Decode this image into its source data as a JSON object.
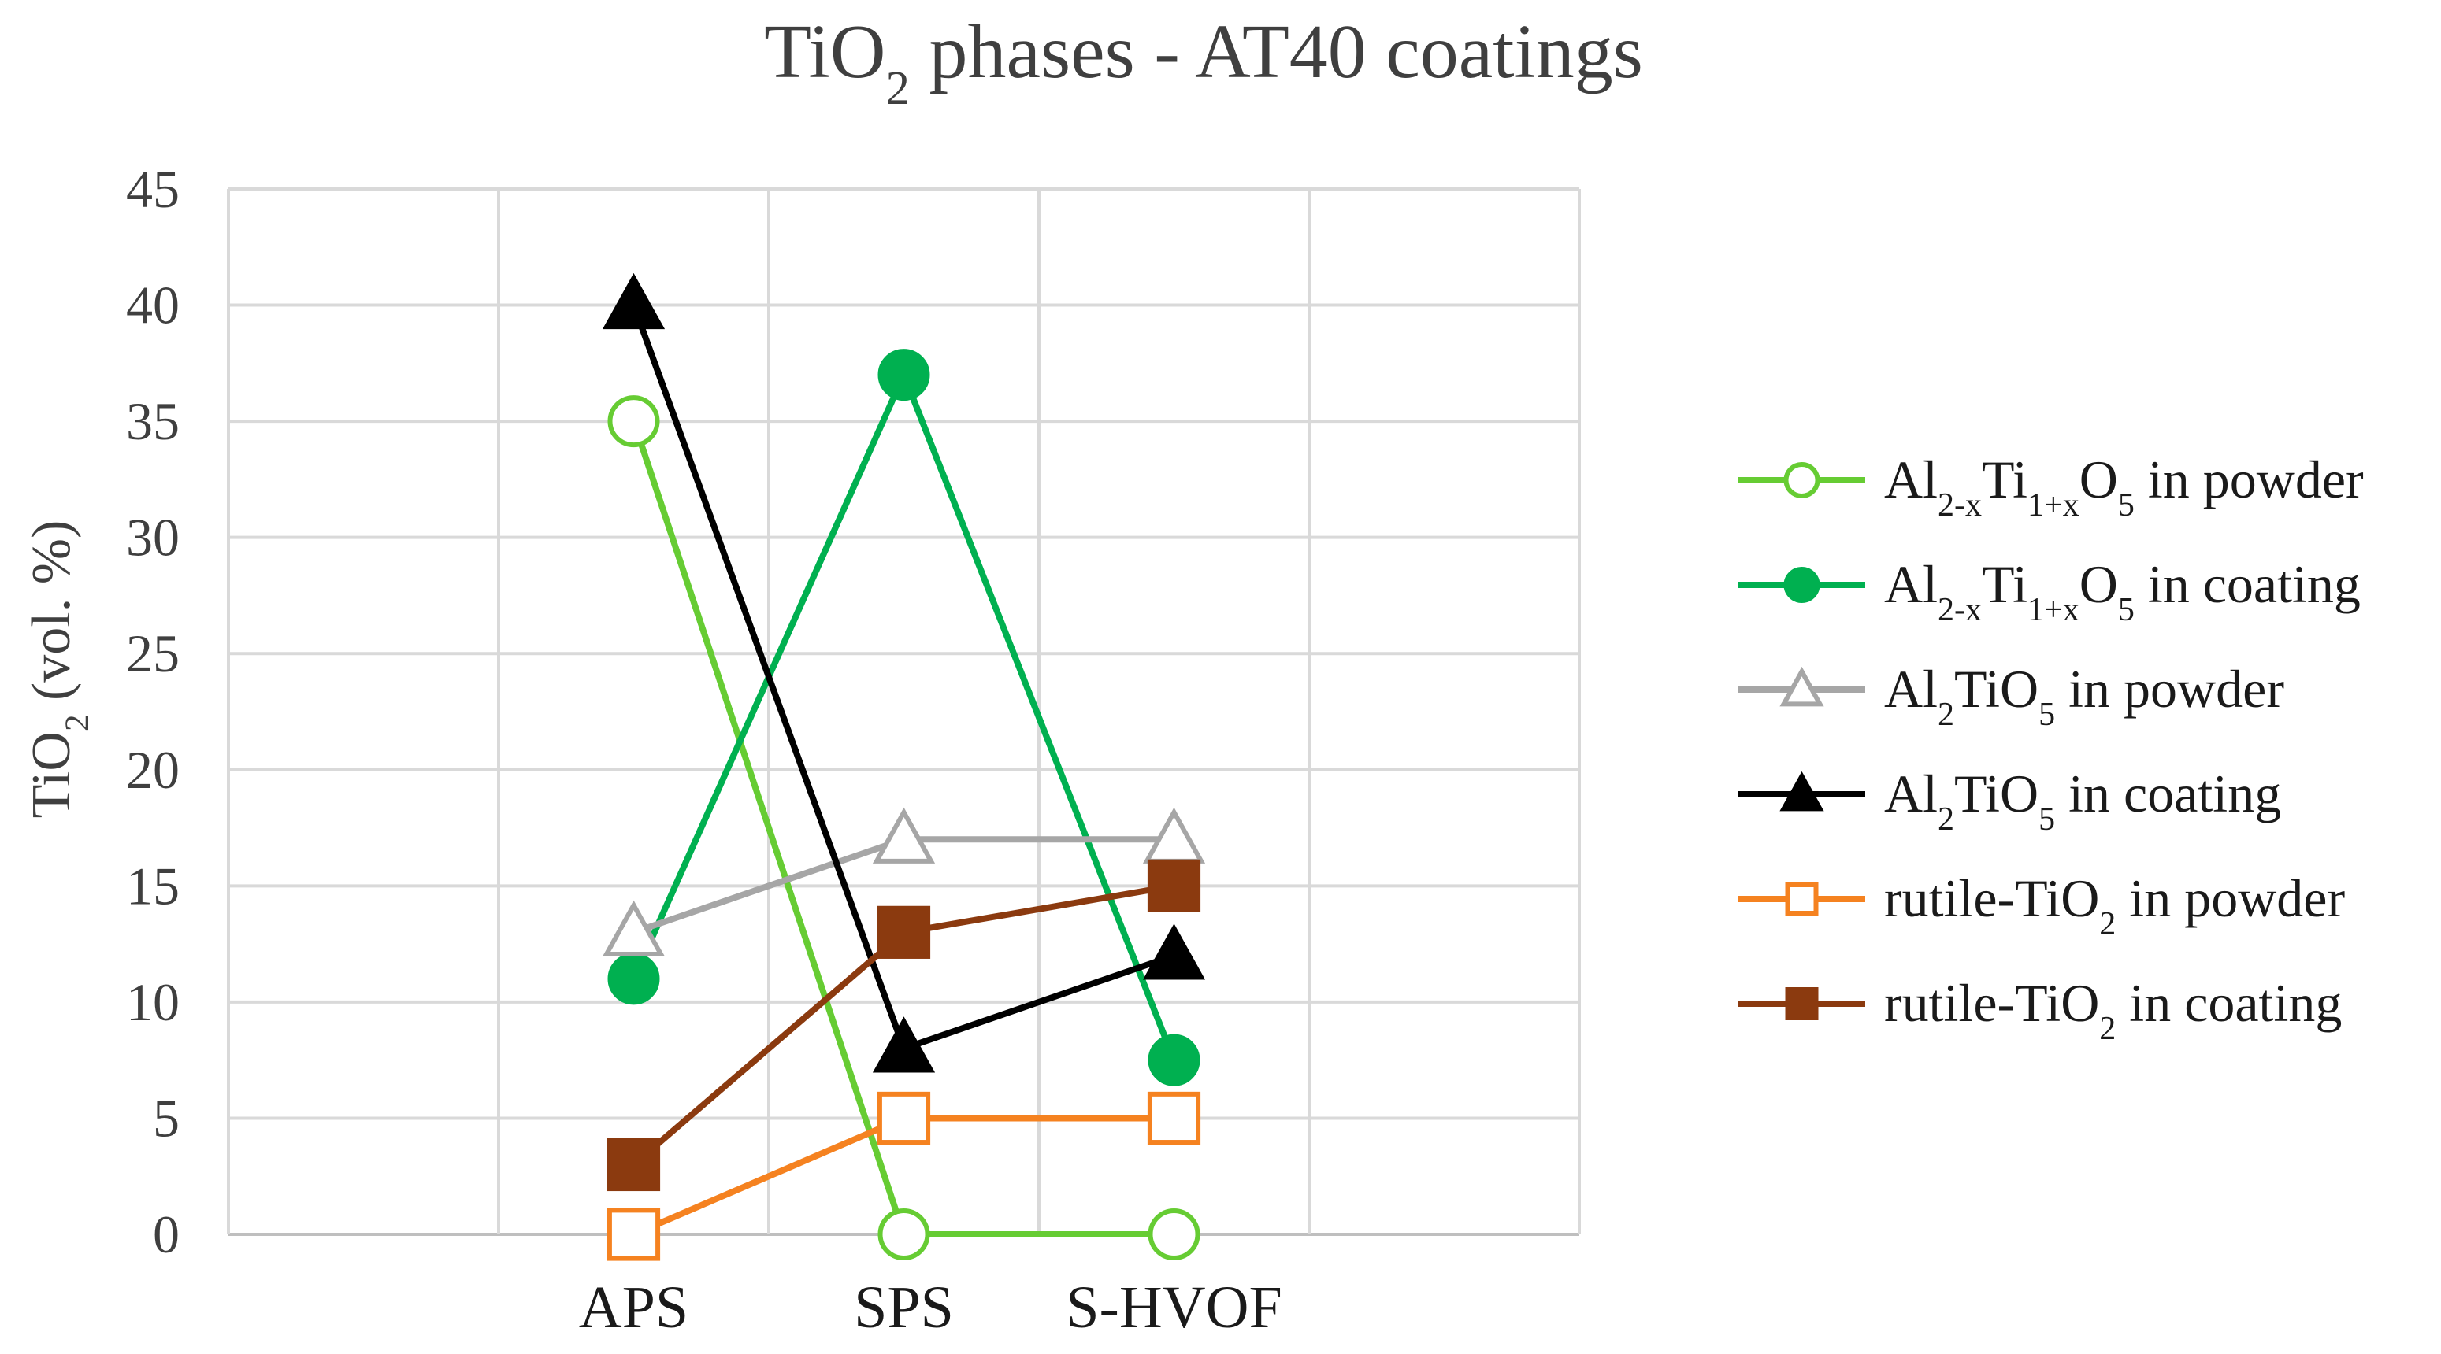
{
  "chart_data": {
    "type": "line",
    "title": {
      "prefix": "TiO",
      "sub": "2",
      "suffix": " phases - AT40 coatings"
    },
    "ylabel": {
      "prefix": "TiO",
      "sub": "2",
      "suffix": " (vol. %)"
    },
    "xlabel": "",
    "categories": [
      "",
      "APS",
      "SPS",
      "S-HVOF",
      ""
    ],
    "ylim": [
      0,
      45
    ],
    "yticks": [
      0,
      5,
      10,
      15,
      20,
      25,
      30,
      35,
      40,
      45
    ],
    "grid": true,
    "legend_position": "right",
    "series": [
      {
        "name": "Al2-xTi1+xO5 in powder",
        "label_parts": [
          [
            "Al",
            ""
          ],
          [
            "2-x",
            "sub"
          ],
          [
            "Ti",
            ""
          ],
          [
            "1+x",
            "sub"
          ],
          [
            "O",
            ""
          ],
          [
            "5",
            "sub"
          ],
          [
            " in powder",
            ""
          ]
        ],
        "color": "#66cc33",
        "marker": "circle",
        "filled": false,
        "values": [
          null,
          35,
          0,
          0,
          null
        ]
      },
      {
        "name": "Al2-xTi1+xO5 in coating",
        "label_parts": [
          [
            "Al",
            ""
          ],
          [
            "2-x",
            "sub"
          ],
          [
            "Ti",
            ""
          ],
          [
            "1+x",
            "sub"
          ],
          [
            "O",
            ""
          ],
          [
            "5",
            "sub"
          ],
          [
            " in coating",
            ""
          ]
        ],
        "color": "#00b050",
        "marker": "circle",
        "filled": true,
        "values": [
          null,
          11,
          37,
          7.5,
          null
        ]
      },
      {
        "name": "Al2TiO5 in powder",
        "label_parts": [
          [
            "Al",
            ""
          ],
          [
            "2",
            "sub"
          ],
          [
            "TiO",
            ""
          ],
          [
            "5",
            "sub"
          ],
          [
            " in powder",
            ""
          ]
        ],
        "color": "#a6a6a6",
        "marker": "triangle",
        "filled": false,
        "values": [
          null,
          13,
          17,
          17,
          null
        ]
      },
      {
        "name": "Al2TiO5 in coating",
        "label_parts": [
          [
            "Al",
            ""
          ],
          [
            "2",
            "sub"
          ],
          [
            "TiO",
            ""
          ],
          [
            "5",
            "sub"
          ],
          [
            " in coating",
            ""
          ]
        ],
        "color": "#000000",
        "marker": "triangle",
        "filled": true,
        "values": [
          null,
          40,
          8,
          12,
          null
        ]
      },
      {
        "name": "rutile-TiO2 in powder",
        "label_parts": [
          [
            "rutile-TiO",
            ""
          ],
          [
            "2",
            "sub"
          ],
          [
            " in powder",
            ""
          ]
        ],
        "color": "#f58220",
        "marker": "square",
        "filled": false,
        "values": [
          null,
          0,
          5,
          5,
          null
        ]
      },
      {
        "name": "rutile-TiO2 in coating",
        "label_parts": [
          [
            "rutile-TiO",
            ""
          ],
          [
            "2",
            "sub"
          ],
          [
            " in coating",
            ""
          ]
        ],
        "color": "#8b3a0f",
        "marker": "square",
        "filled": true,
        "values": [
          null,
          3,
          13,
          15,
          null
        ]
      }
    ]
  }
}
